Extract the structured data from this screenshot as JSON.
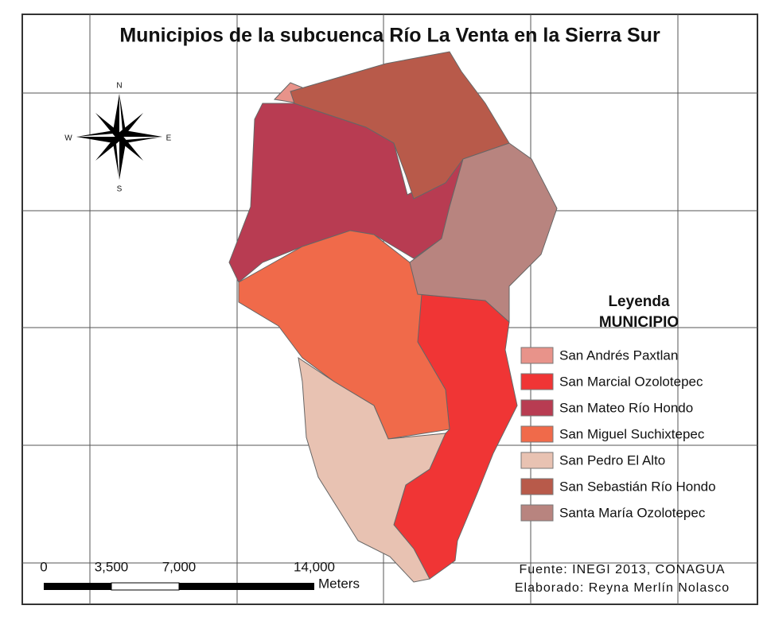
{
  "title": "Municipios de la subcuenca Río La Venta en la Sierra Sur",
  "legend": {
    "title": "Leyenda",
    "subtitle": "MUNICIPIO",
    "items": [
      {
        "label": "San Andrés Paxtlan",
        "color": "#e8938a"
      },
      {
        "label": "San Marcial Ozolotepec",
        "color": "#f03535"
      },
      {
        "label": "San Mateo Río Hondo",
        "color": "#b83c52"
      },
      {
        "label": "San Miguel Suchixtepec",
        "color": "#f06a4a"
      },
      {
        "label": "San Pedro El Alto",
        "color": "#e8c2b2"
      },
      {
        "label": "San Sebastián Río Hondo",
        "color": "#b85a4a"
      },
      {
        "label": "Santa María Ozolotepec",
        "color": "#b8847f"
      }
    ]
  },
  "compass": {
    "north": "N",
    "south": "S",
    "east": "E",
    "west": "W"
  },
  "scale_bar": {
    "labels": [
      "0",
      "3,500",
      "7,000",
      "14,000"
    ],
    "unit": "Meters"
  },
  "credits": [
    "Fuente: INEGI 2013, CONAGUA",
    "Elaborado: Reyna Merlín Nolasco"
  ]
}
